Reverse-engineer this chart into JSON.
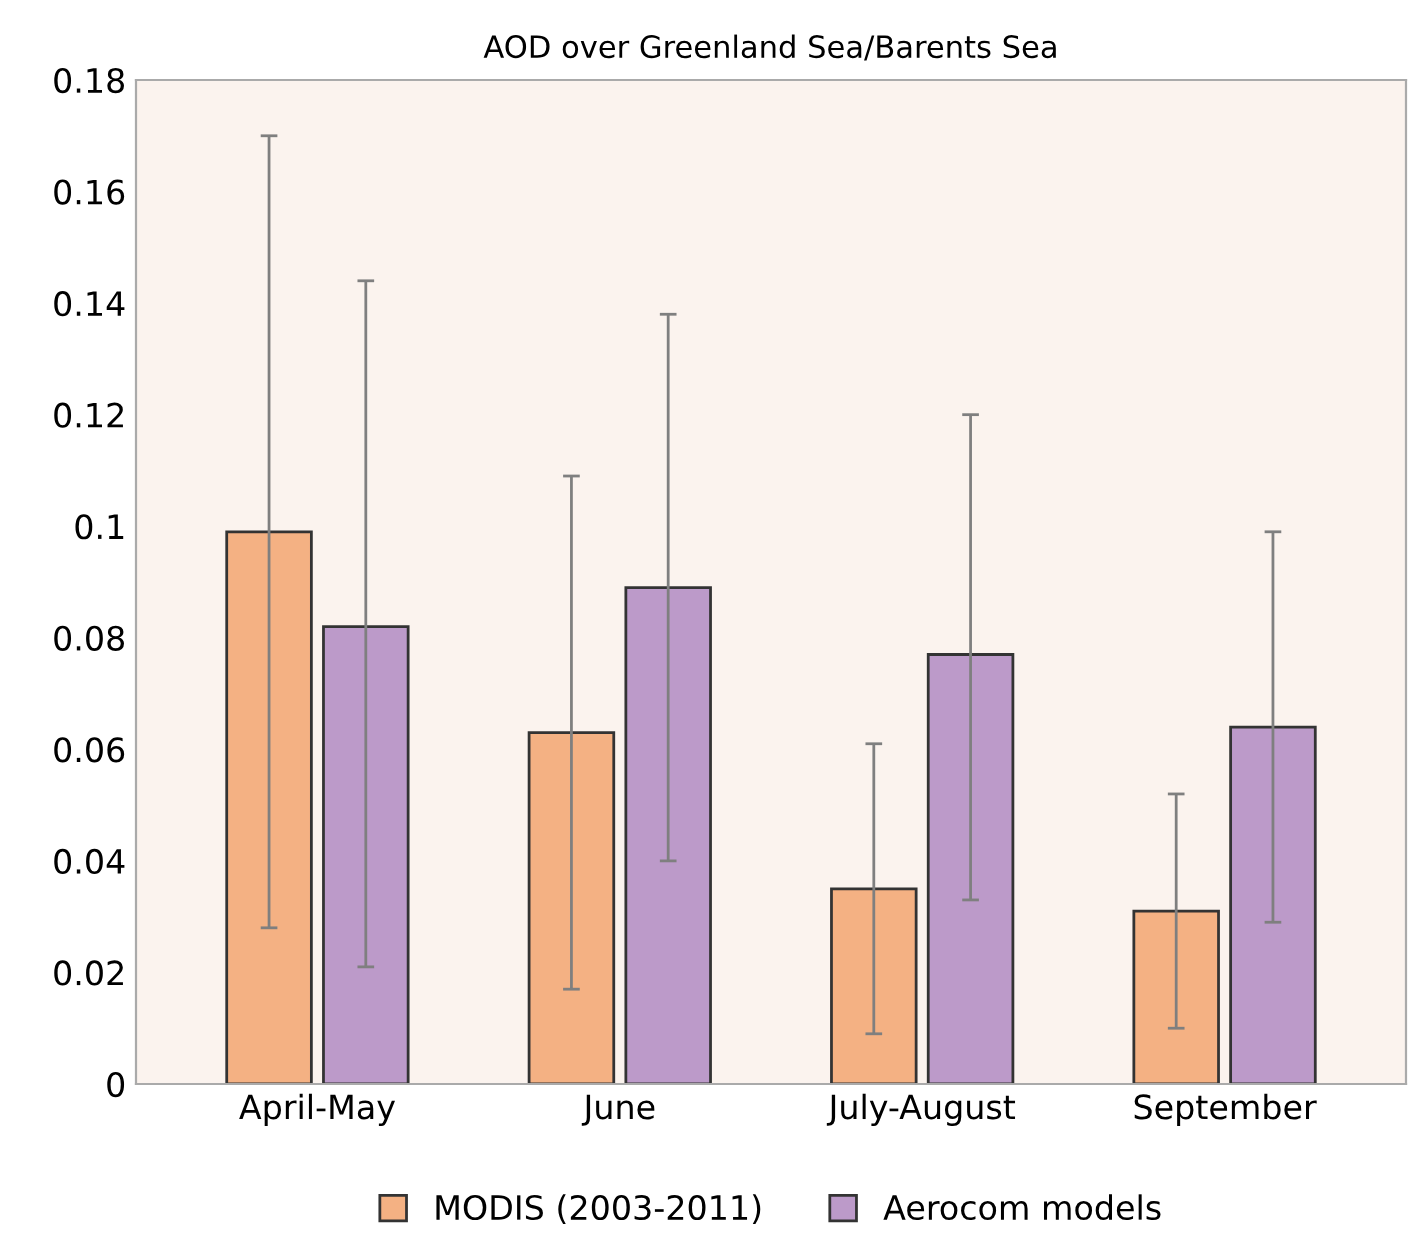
{
  "chart_data": {
    "type": "bar",
    "title": "AOD over Greenland Sea/Barents Sea",
    "categories": [
      "April-May",
      "June",
      "July-August",
      "September"
    ],
    "series": [
      {
        "name": "MODIS (2003-2011)",
        "color": "#f4b183",
        "values": [
          0.099,
          0.063,
          0.035,
          0.031
        ],
        "errors": [
          [
            0.028,
            0.17
          ],
          [
            0.017,
            0.109
          ],
          [
            0.009,
            0.061
          ],
          [
            0.01,
            0.052
          ]
        ]
      },
      {
        "name": "Aerocom models",
        "color": "#bc9ac9",
        "values": [
          0.082,
          0.089,
          0.077,
          0.064
        ],
        "errors": [
          [
            0.021,
            0.144
          ],
          [
            0.04,
            0.138
          ],
          [
            0.033,
            0.12
          ],
          [
            0.029,
            0.099
          ]
        ]
      }
    ],
    "ylim": [
      0,
      0.18
    ],
    "yticks": [
      0,
      0.02,
      0.04,
      0.06,
      0.08,
      0.1,
      0.12,
      0.14,
      0.16,
      0.18
    ],
    "grid": false,
    "legend": "bottom"
  }
}
